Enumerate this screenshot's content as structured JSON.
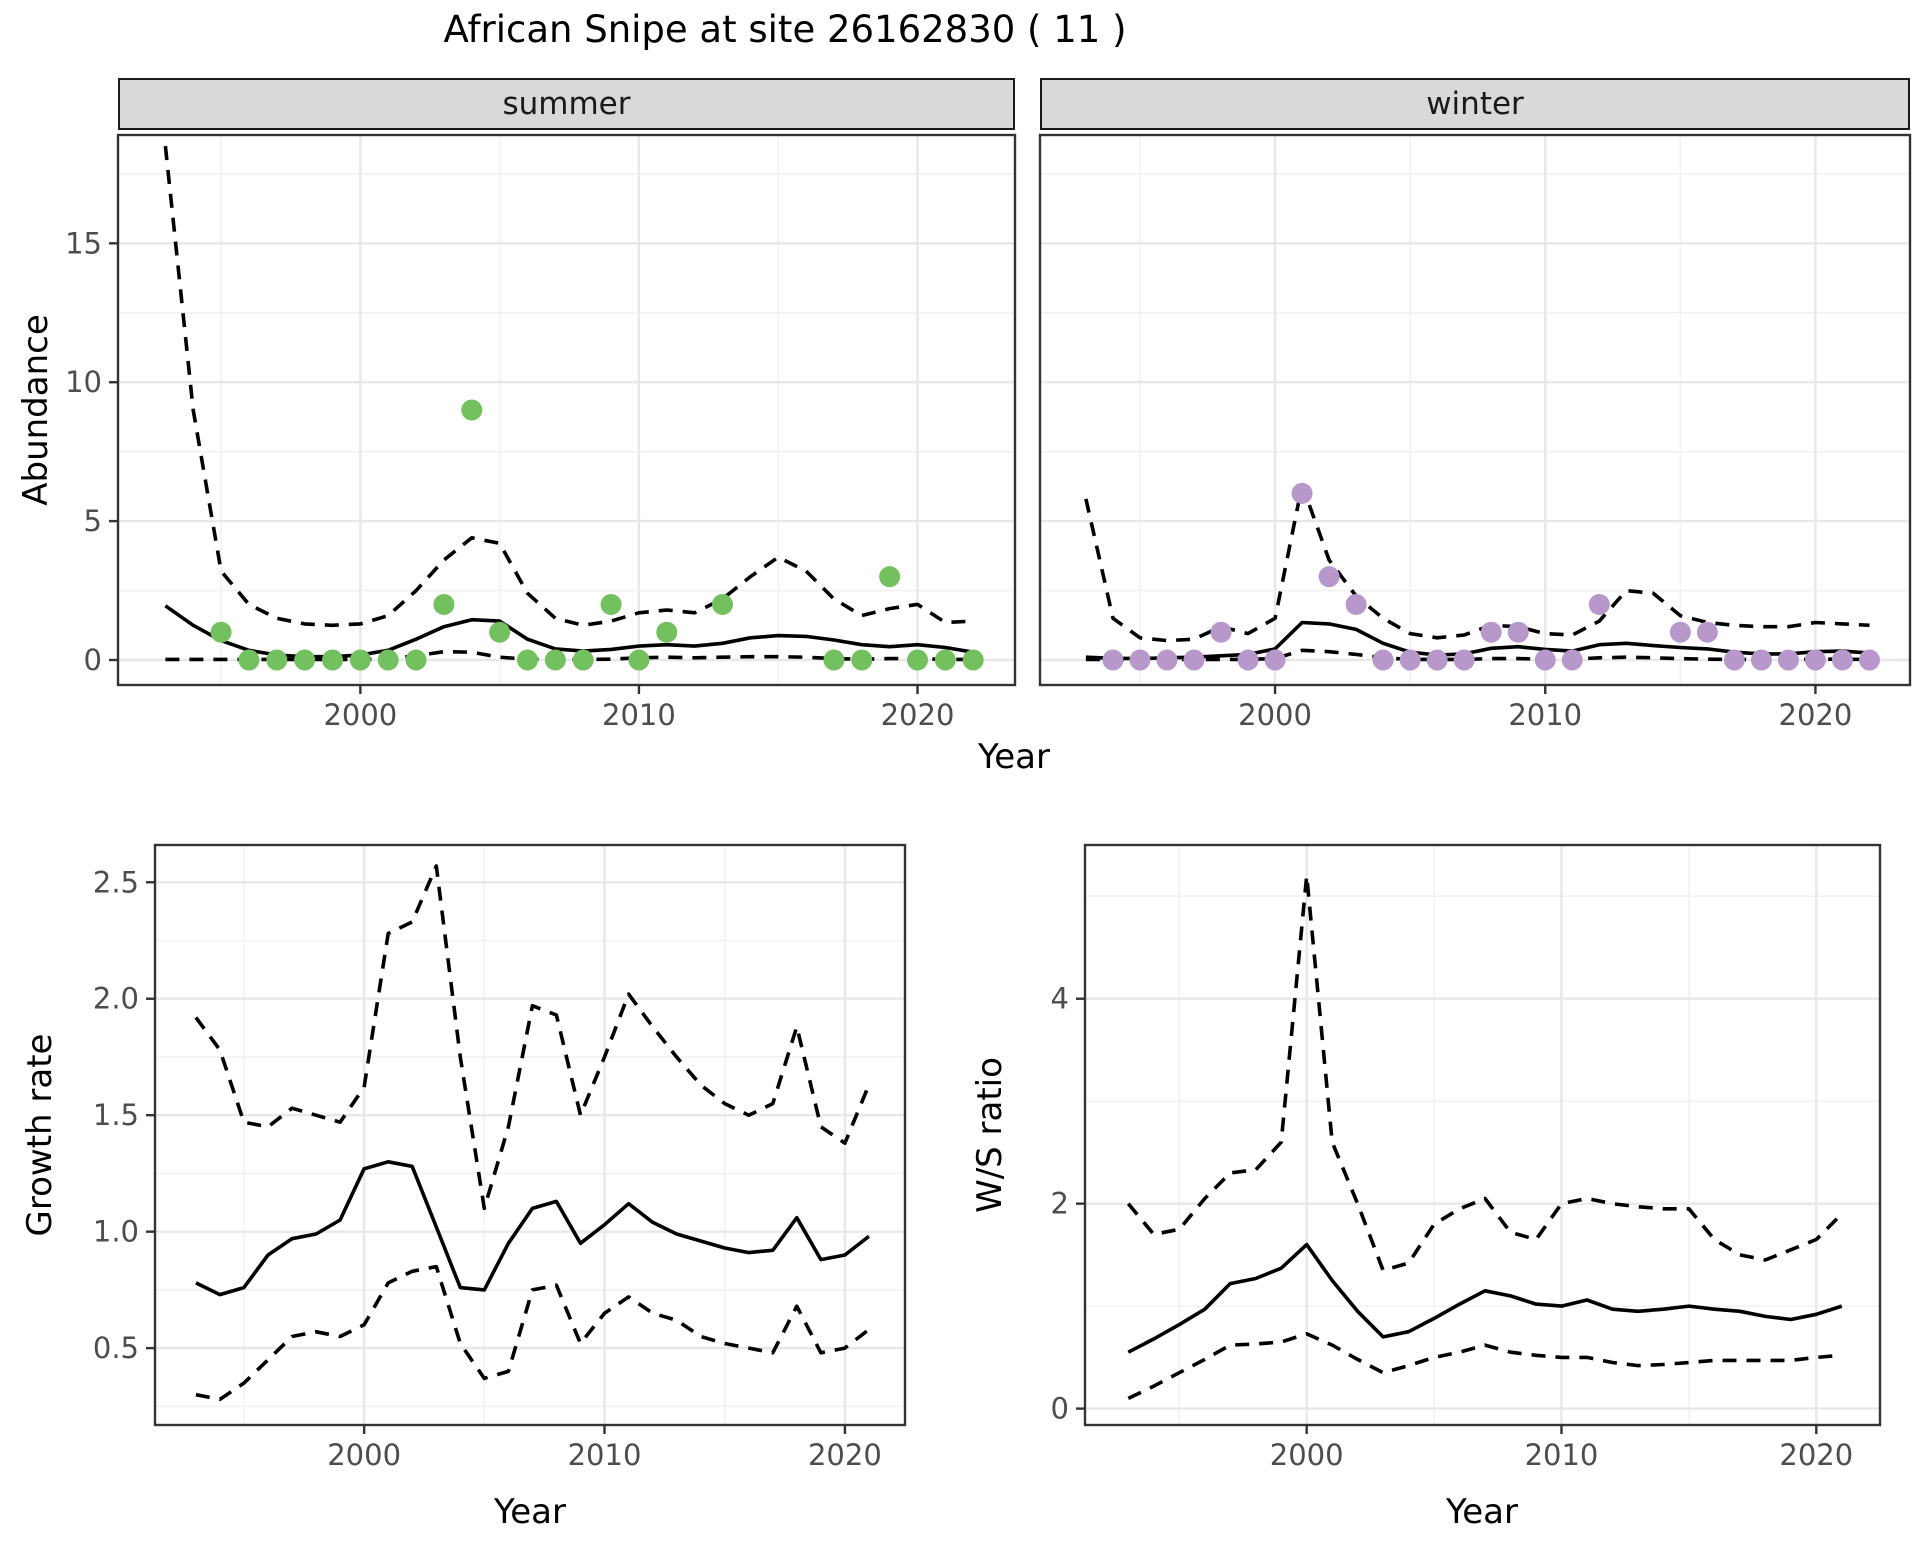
{
  "title": "African Snipe at site 26162830 ( 11 )",
  "facets": {
    "summer_label": "summer",
    "winter_label": "winter"
  },
  "axis_titles": {
    "abundance": "Abundance",
    "year_top": "Year",
    "growth": "Growth rate",
    "year_growth": "Year",
    "ws": "W/S ratio",
    "year_ws": "Year"
  },
  "colors": {
    "summer_point": "#73c05f",
    "winter_point": "#b897cb",
    "line": "#000000",
    "strip_bg": "#d9d9d9",
    "grid_major": "#e8e8e8",
    "grid_minor": "#f2f2f2",
    "panel_border": "#333333",
    "axis_text": "#4d4d4d"
  },
  "chart_data": [
    {
      "panel": "summer",
      "type": "line",
      "strip": "summer",
      "xlabel": "Year",
      "ylabel": "Abundance",
      "x_domain": [
        1991.3,
        2023.5
      ],
      "y_domain": [
        -0.9,
        18.9
      ],
      "x_ticks": [
        2000,
        2010,
        2020
      ],
      "x_minor": [
        1995,
        2005,
        2015
      ],
      "y_ticks": [
        0,
        5,
        10,
        15
      ],
      "y_minor": [
        2.5,
        7.5,
        12.5,
        17.5
      ],
      "show_y_labels": true,
      "years": [
        1993,
        1994,
        1995,
        1996,
        1997,
        1998,
        1999,
        2000,
        2001,
        2002,
        2003,
        2004,
        2005,
        2006,
        2007,
        2008,
        2009,
        2010,
        2011,
        2012,
        2013,
        2014,
        2015,
        2016,
        2017,
        2018,
        2019,
        2020,
        2021,
        2022
      ],
      "series": [
        {
          "name": "mean",
          "style": "solid",
          "values": [
            1.95,
            1.25,
            0.7,
            0.35,
            0.18,
            0.12,
            0.12,
            0.18,
            0.35,
            0.75,
            1.2,
            1.45,
            1.4,
            0.75,
            0.4,
            0.32,
            0.38,
            0.5,
            0.55,
            0.5,
            0.6,
            0.8,
            0.88,
            0.85,
            0.72,
            0.55,
            0.48,
            0.55,
            0.45,
            0.28
          ]
        },
        {
          "name": "upper_ci",
          "style": "dashed",
          "values": [
            18.5,
            9.0,
            3.2,
            2.0,
            1.5,
            1.3,
            1.25,
            1.3,
            1.6,
            2.5,
            3.6,
            4.4,
            4.2,
            2.4,
            1.5,
            1.25,
            1.4,
            1.7,
            1.8,
            1.7,
            2.2,
            3.0,
            3.7,
            3.2,
            2.2,
            1.6,
            1.85,
            2.0,
            1.35,
            1.4
          ]
        },
        {
          "name": "lower_ci",
          "style": "dashed",
          "values": [
            0.02,
            0.02,
            0.02,
            0.02,
            0.02,
            0.02,
            0.02,
            0.02,
            0.05,
            0.15,
            0.3,
            0.28,
            0.1,
            0.03,
            0.02,
            0.02,
            0.03,
            0.08,
            0.1,
            0.08,
            0.1,
            0.12,
            0.12,
            0.1,
            0.05,
            0.03,
            0.05,
            0.05,
            0.02,
            0.02
          ]
        }
      ],
      "points": {
        "color_key": "summer_point",
        "years": [
          1995,
          1996,
          1997,
          1998,
          1999,
          2000,
          2001,
          2002,
          2003,
          2004,
          2005,
          2006,
          2007,
          2008,
          2009,
          2010,
          2011,
          2013,
          2017,
          2018,
          2019,
          2020,
          2021,
          2022
        ],
        "values": [
          1,
          0,
          0,
          0,
          0,
          0,
          0,
          0,
          2,
          9,
          1,
          0,
          0,
          0,
          2,
          0,
          1,
          2,
          0,
          0,
          3,
          0,
          0,
          0
        ]
      }
    },
    {
      "panel": "winter",
      "type": "line",
      "strip": "winter",
      "xlabel": "Year",
      "ylabel": "Abundance",
      "x_domain": [
        1991.3,
        2023.5
      ],
      "y_domain": [
        -0.9,
        18.9
      ],
      "x_ticks": [
        2000,
        2010,
        2020
      ],
      "x_minor": [
        1995,
        2005,
        2015
      ],
      "y_ticks": [
        0,
        5,
        10,
        15
      ],
      "y_minor": [
        2.5,
        7.5,
        12.5,
        17.5
      ],
      "show_y_labels": false,
      "years": [
        1993,
        1994,
        1995,
        1996,
        1997,
        1998,
        1999,
        2000,
        2001,
        2002,
        2003,
        2004,
        2005,
        2006,
        2007,
        2008,
        2009,
        2010,
        2011,
        2012,
        2013,
        2014,
        2015,
        2016,
        2017,
        2018,
        2019,
        2020,
        2021,
        2022
      ],
      "series": [
        {
          "name": "mean",
          "style": "solid",
          "values": [
            0.1,
            0.06,
            0.05,
            0.08,
            0.1,
            0.15,
            0.2,
            0.4,
            1.35,
            1.3,
            1.1,
            0.6,
            0.28,
            0.18,
            0.22,
            0.42,
            0.48,
            0.38,
            0.32,
            0.55,
            0.6,
            0.52,
            0.45,
            0.4,
            0.28,
            0.22,
            0.22,
            0.3,
            0.32,
            0.25
          ]
        },
        {
          "name": "upper_ci",
          "style": "dashed",
          "values": [
            5.8,
            1.5,
            0.8,
            0.7,
            0.75,
            1.2,
            0.95,
            1.5,
            6.3,
            3.6,
            2.3,
            1.5,
            0.95,
            0.8,
            0.9,
            1.25,
            1.2,
            0.95,
            0.9,
            1.4,
            2.5,
            2.4,
            1.6,
            1.35,
            1.25,
            1.2,
            1.2,
            1.35,
            1.3,
            1.25
          ]
        },
        {
          "name": "lower_ci",
          "style": "dashed",
          "values": [
            0.02,
            0.02,
            0.02,
            0.02,
            0.02,
            0.02,
            0.02,
            0.05,
            0.35,
            0.3,
            0.2,
            0.08,
            0.02,
            0.02,
            0.02,
            0.05,
            0.05,
            0.03,
            0.03,
            0.08,
            0.1,
            0.08,
            0.05,
            0.03,
            0.02,
            0.02,
            0.02,
            0.03,
            0.03,
            0.02
          ]
        }
      ],
      "points": {
        "color_key": "winter_point",
        "years": [
          1994,
          1995,
          1996,
          1997,
          1998,
          1999,
          2000,
          2001,
          2002,
          2003,
          2004,
          2005,
          2006,
          2007,
          2008,
          2009,
          2010,
          2011,
          2012,
          2015,
          2016,
          2017,
          2018,
          2019,
          2020,
          2021,
          2022
        ],
        "values": [
          0,
          0,
          0,
          0,
          1,
          0,
          0,
          6,
          3,
          2,
          0,
          0,
          0,
          0,
          1,
          1,
          0,
          0,
          2,
          1,
          1,
          0,
          0,
          0,
          0,
          0,
          0
        ]
      }
    },
    {
      "panel": "growth",
      "type": "line",
      "xlabel": "Year",
      "ylabel": "Growth rate",
      "x_domain": [
        1991.3,
        2022.5
      ],
      "y_domain": [
        0.17,
        2.66
      ],
      "x_ticks": [
        2000,
        2010,
        2020
      ],
      "x_minor": [
        1995,
        2005,
        2015
      ],
      "y_ticks": [
        0.5,
        1.0,
        1.5,
        2.0,
        2.5
      ],
      "y_minor": [
        0.25,
        0.75,
        1.25,
        1.75,
        2.25
      ],
      "y_tick_labels": [
        "0.5",
        "1.0",
        "1.5",
        "2.0",
        "2.5"
      ],
      "show_y_labels": true,
      "years": [
        1993,
        1994,
        1995,
        1996,
        1997,
        1998,
        1999,
        2000,
        2001,
        2002,
        2003,
        2004,
        2005,
        2006,
        2007,
        2008,
        2009,
        2010,
        2011,
        2012,
        2013,
        2014,
        2015,
        2016,
        2017,
        2018,
        2019,
        2020,
        2021
      ],
      "series": [
        {
          "name": "mean",
          "style": "solid",
          "values": [
            0.78,
            0.73,
            0.76,
            0.9,
            0.97,
            0.99,
            1.05,
            1.27,
            1.3,
            1.28,
            1.02,
            0.76,
            0.75,
            0.95,
            1.1,
            1.13,
            0.95,
            1.03,
            1.12,
            1.04,
            0.99,
            0.96,
            0.93,
            0.91,
            0.92,
            1.06,
            0.88,
            0.9,
            0.98
          ]
        },
        {
          "name": "upper_ci",
          "style": "dashed",
          "values": [
            1.92,
            1.78,
            1.47,
            1.45,
            1.53,
            1.5,
            1.47,
            1.62,
            2.28,
            2.33,
            2.57,
            1.75,
            1.1,
            1.45,
            1.97,
            1.93,
            1.5,
            1.75,
            2.02,
            1.88,
            1.75,
            1.63,
            1.55,
            1.5,
            1.55,
            1.88,
            1.45,
            1.38,
            1.63
          ]
        },
        {
          "name": "lower_ci",
          "style": "dashed",
          "values": [
            0.3,
            0.28,
            0.35,
            0.45,
            0.55,
            0.57,
            0.55,
            0.6,
            0.78,
            0.83,
            0.85,
            0.52,
            0.37,
            0.4,
            0.75,
            0.77,
            0.52,
            0.65,
            0.72,
            0.65,
            0.62,
            0.55,
            0.52,
            0.5,
            0.48,
            0.68,
            0.48,
            0.5,
            0.58
          ]
        }
      ]
    },
    {
      "panel": "ws",
      "type": "line",
      "xlabel": "Year",
      "ylabel": "W/S ratio",
      "x_domain": [
        1991.3,
        2022.5
      ],
      "y_domain": [
        -0.16,
        5.5
      ],
      "x_ticks": [
        2000,
        2010,
        2020
      ],
      "x_minor": [
        1995,
        2005,
        2015
      ],
      "y_ticks": [
        0,
        2,
        4
      ],
      "y_minor": [
        1,
        3,
        5
      ],
      "show_y_labels": true,
      "years": [
        1993,
        1994,
        1995,
        1996,
        1997,
        1998,
        1999,
        2000,
        2001,
        2002,
        2003,
        2004,
        2005,
        2006,
        2007,
        2008,
        2009,
        2010,
        2011,
        2012,
        2013,
        2014,
        2015,
        2016,
        2017,
        2018,
        2019,
        2020,
        2021
      ],
      "series": [
        {
          "name": "mean",
          "style": "solid",
          "values": [
            0.55,
            0.68,
            0.82,
            0.97,
            1.22,
            1.27,
            1.37,
            1.6,
            1.25,
            0.95,
            0.7,
            0.75,
            0.88,
            1.02,
            1.15,
            1.1,
            1.02,
            1.0,
            1.06,
            0.97,
            0.95,
            0.97,
            1.0,
            0.97,
            0.95,
            0.9,
            0.87,
            0.92,
            1.0
          ]
        },
        {
          "name": "upper_ci",
          "style": "dashed",
          "values": [
            2.0,
            1.7,
            1.75,
            2.05,
            2.3,
            2.33,
            2.6,
            5.2,
            2.6,
            2.0,
            1.35,
            1.42,
            1.8,
            1.95,
            2.05,
            1.72,
            1.65,
            2.0,
            2.05,
            2.0,
            1.97,
            1.95,
            1.95,
            1.65,
            1.5,
            1.45,
            1.55,
            1.65,
            1.9
          ]
        },
        {
          "name": "lower_ci",
          "style": "dashed",
          "values": [
            0.1,
            0.22,
            0.35,
            0.48,
            0.62,
            0.63,
            0.65,
            0.73,
            0.62,
            0.48,
            0.35,
            0.42,
            0.5,
            0.55,
            0.62,
            0.55,
            0.52,
            0.5,
            0.5,
            0.45,
            0.42,
            0.43,
            0.45,
            0.47,
            0.47,
            0.47,
            0.47,
            0.5,
            0.52
          ]
        }
      ]
    }
  ]
}
